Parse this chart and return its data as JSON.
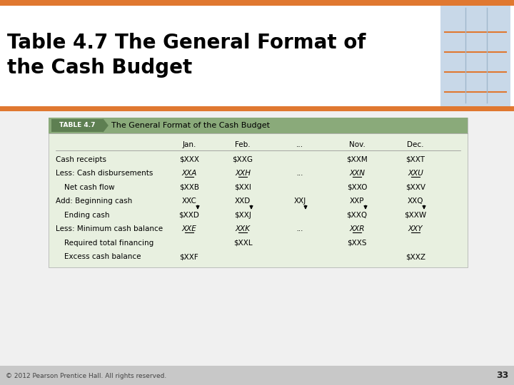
{
  "title_line1": "Table 4.7 The General Format of",
  "title_line2": "the Cash Budget",
  "table_header_label": "TABLE 4.7",
  "table_header_title": "The General Format of the Cash Budget",
  "header_bg": "#8aaa7a",
  "header_label_bg": "#5e7f52",
  "table_bg": "#e8f0e0",
  "slide_bg": "#dcdcdc",
  "content_bg": "#f0f0f0",
  "title_bg": "#ffffff",
  "orange_accent": "#e07830",
  "footer_bg": "#c8c8c8",
  "footer_text": "© 2012 Pearson Prentice Hall. All rights reserved.",
  "page_number": "33",
  "columns": [
    "",
    "Jan.",
    "Feb.",
    "...",
    "Nov.",
    "Dec."
  ],
  "rows": [
    [
      "Cash receipts",
      "$XXX",
      "$XXG",
      "",
      "$XXM",
      "$XXT"
    ],
    [
      "Less: Cash disbursements",
      "XXA",
      "XXH",
      "...",
      "XXN",
      "XXU"
    ],
    [
      "Net cash flow",
      "$XXB",
      "$XXI",
      "",
      "$XXO",
      "$XXV"
    ],
    [
      "Add: Beginning cash",
      "XXC",
      "XXD",
      "XXJ",
      "XXP",
      "XXQ"
    ],
    [
      "Ending cash",
      "$XXD",
      "$XXJ",
      "",
      "$XXQ",
      "$XXW"
    ],
    [
      "Less: Minimum cash balance",
      "XXE",
      "XXK",
      "...",
      "XXR",
      "XXY"
    ],
    [
      "Required total financing",
      "",
      "$XXL",
      "",
      "$XXS",
      ""
    ],
    [
      "Excess cash balance",
      "$XXF",
      "",
      "",
      "",
      "$XXZ"
    ]
  ],
  "row_indent": [
    false,
    false,
    true,
    false,
    true,
    false,
    true,
    true
  ],
  "underline_rows": [
    1,
    5
  ],
  "title_fontsize": 20,
  "table_fontsize": 7.5,
  "header_fontsize": 7.5
}
